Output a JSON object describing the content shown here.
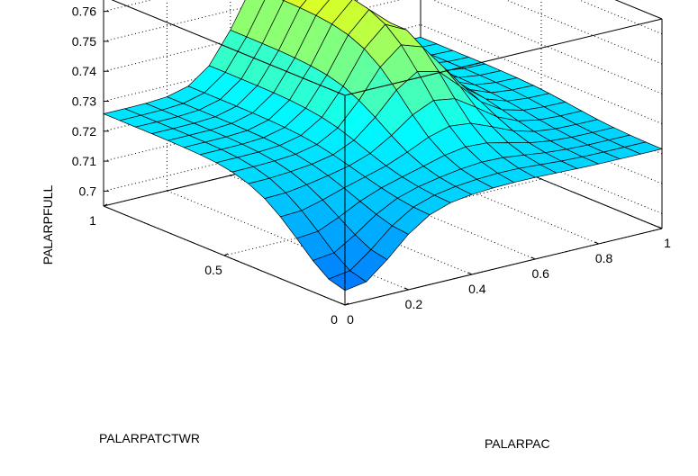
{
  "chart_data": {
    "type": "surface",
    "title": "",
    "xlabel": "PALARPAC",
    "ylabel": "PALARPATCTWR",
    "zlabel": "PALARPFULL",
    "xlim": [
      0,
      1
    ],
    "ylim": [
      0,
      1
    ],
    "zlim": [
      0.695,
      0.765
    ],
    "grid": true,
    "colormap": [
      "#0000ff",
      "#00ffff",
      "#ffff00"
    ],
    "x_ticks": [
      {
        "v": 0,
        "label": "0"
      },
      {
        "v": 0.2,
        "label": "0.2"
      },
      {
        "v": 0.4,
        "label": "0.4"
      },
      {
        "v": 0.6,
        "label": "0.6"
      },
      {
        "v": 0.8,
        "label": "0.8"
      },
      {
        "v": 1,
        "label": "1"
      }
    ],
    "y_ticks": [
      {
        "v": 0,
        "label": "0"
      },
      {
        "v": 0.5,
        "label": "0.5"
      },
      {
        "v": 1,
        "label": "1"
      }
    ],
    "z_ticks": [
      {
        "v": 0.7,
        "label": "0.7"
      },
      {
        "v": 0.71,
        "label": "0.71"
      },
      {
        "v": 0.72,
        "label": "0.72"
      },
      {
        "v": 0.73,
        "label": "0.73"
      },
      {
        "v": 0.74,
        "label": "0.74"
      },
      {
        "v": 0.75,
        "label": "0.75"
      },
      {
        "v": 0.76,
        "label": "0.76"
      }
    ],
    "x": [
      0,
      0.067,
      0.133,
      0.2,
      0.267,
      0.333,
      0.4,
      0.467,
      0.533,
      0.6,
      0.667,
      0.733,
      0.8,
      0.867,
      0.933,
      1
    ],
    "y": [
      0,
      0.067,
      0.133,
      0.2,
      0.267,
      0.333,
      0.4,
      0.467,
      0.533,
      0.6,
      0.667,
      0.733,
      0.8,
      0.867,
      0.933,
      1
    ],
    "z_model": {
      "base": 0.7215,
      "sigmoid_center": 0.37,
      "sigmoid_width": 0.095,
      "ridge_amplitude": 0.043,
      "ridge_center_x": 0.55,
      "ridge_width_x": 0.17,
      "ridge_floor": 0.1,
      "dip_amplitude": 0.018,
      "dip_center_x": 0.65,
      "dip_center_y": 0.75,
      "dip_width_x": 0.07,
      "dip_width_y": 0.15
    }
  }
}
